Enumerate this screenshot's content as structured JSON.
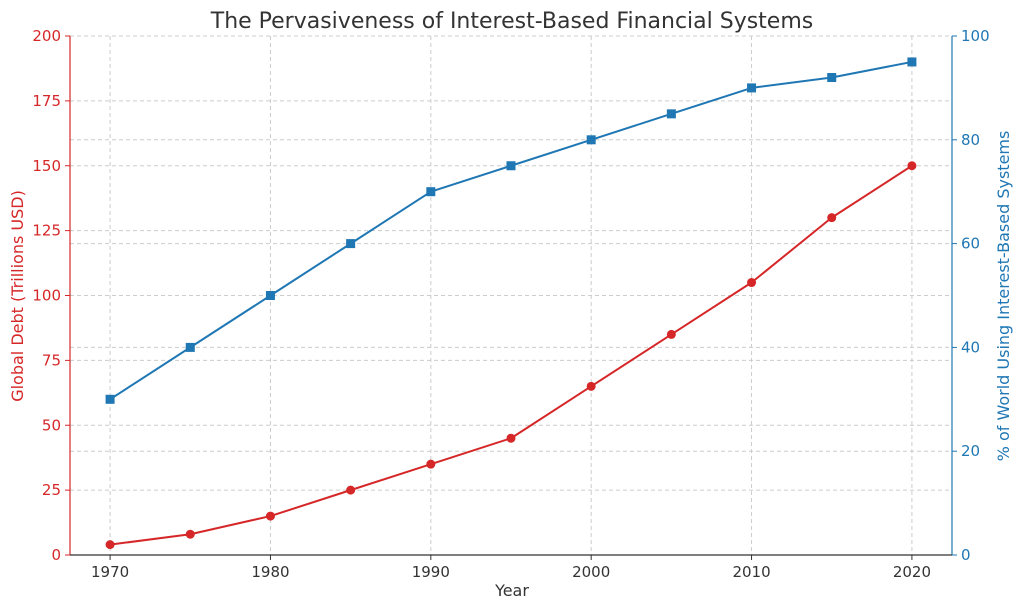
{
  "chart_data": {
    "type": "line",
    "title": "The Pervasiveness of Interest-Based Financial Systems",
    "xlabel": "Year",
    "x": [
      1970,
      1975,
      1980,
      1985,
      1990,
      1995,
      2000,
      2005,
      2010,
      2015,
      2020
    ],
    "x_ticks": [
      1970,
      1980,
      1990,
      2000,
      2010,
      2020
    ],
    "xlim": [
      1967.5,
      2022.5
    ],
    "grid": true,
    "left_axis": {
      "label": "Global Debt (Trillions USD)",
      "ylim": [
        0,
        200
      ],
      "ticks": [
        0,
        25,
        50,
        75,
        100,
        125,
        150,
        175,
        200
      ],
      "color": "#d62728"
    },
    "right_axis": {
      "label": "% of World Using Interest-Based Systems",
      "ylim": [
        0,
        100
      ],
      "ticks": [
        0,
        20,
        40,
        60,
        80,
        100
      ],
      "color": "#1f77b4"
    },
    "series": [
      {
        "axis": "left",
        "color": "#d62728",
        "marker": "circle",
        "values": [
          4,
          8,
          15,
          25,
          35,
          45,
          65,
          85,
          105,
          130,
          150
        ]
      },
      {
        "axis": "right",
        "color": "#1f77b4",
        "marker": "square",
        "values": [
          30,
          40,
          50,
          60,
          70,
          75,
          80,
          85,
          90,
          92,
          95
        ]
      }
    ]
  }
}
